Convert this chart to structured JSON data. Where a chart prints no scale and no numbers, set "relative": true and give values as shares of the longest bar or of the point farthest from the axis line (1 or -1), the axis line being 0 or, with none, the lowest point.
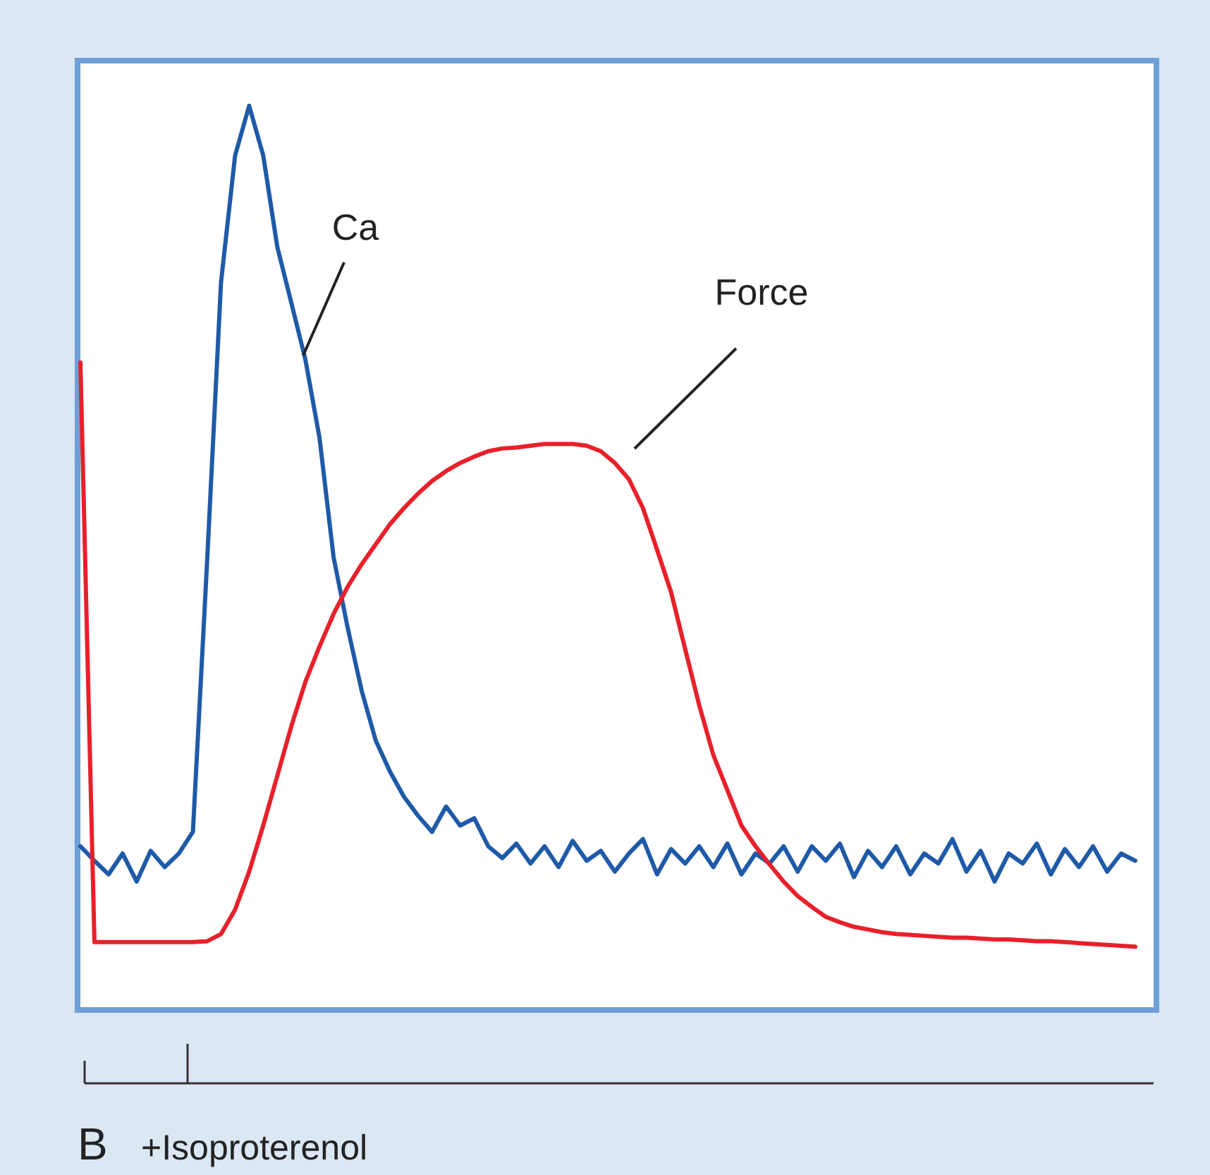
{
  "chart_data": {
    "type": "line",
    "relative": true,
    "categories": [
      null,
      null,
      null,
      null,
      null,
      null,
      null,
      null,
      null,
      null,
      null,
      null,
      null,
      null,
      null,
      null,
      null,
      null,
      null,
      null,
      null,
      null,
      null,
      null,
      null,
      null,
      null,
      null,
      null,
      null,
      null,
      null,
      null,
      null,
      null,
      null,
      null,
      null,
      null,
      null,
      null,
      null,
      null,
      null,
      null,
      null,
      null,
      null,
      null,
      null,
      null,
      null,
      null,
      null,
      null,
      null,
      null,
      null,
      null,
      null,
      null,
      null,
      null,
      null,
      null,
      null,
      null,
      null,
      null,
      null,
      null,
      null,
      null,
      null,
      null,
      null
    ],
    "series": [
      {
        "name": "Ca",
        "color": "#1f5aa8",
        "values": [
          0.181,
          0.165,
          0.15,
          0.173,
          0.142,
          0.176,
          0.158,
          0.173,
          0.197,
          0.493,
          0.805,
          0.945,
          1,
          0.945,
          0.844,
          0.782,
          0.719,
          0.633,
          0.501,
          0.423,
          0.353,
          0.298,
          0.264,
          0.236,
          0.215,
          0.197,
          0.225,
          0.204,
          0.212,
          0.181,
          0.168,
          0.184,
          0.162,
          0.181,
          0.158,
          0.187,
          0.165,
          0.176,
          0.153,
          0.173,
          0.189,
          0.15,
          0.178,
          0.162,
          0.181,
          0.158,
          0.184,
          0.15,
          0.173,
          0.162,
          0.181,
          0.153,
          0.181,
          0.165,
          0.184,
          0.147,
          0.176,
          0.158,
          0.181,
          0.15,
          0.173,
          0.162,
          0.189,
          0.153,
          0.176,
          0.142,
          0.173,
          0.162,
          0.184,
          0.15,
          0.178,
          0.158,
          0.181,
          0.153,
          0.173,
          0.165
        ]
      },
      {
        "name": "Force",
        "color": "#e8202a",
        "values": [
          0.716,
          0.075,
          0.075,
          0.075,
          0.075,
          0.075,
          0.075,
          0.075,
          0.075,
          0.076,
          0.084,
          0.111,
          0.153,
          0.204,
          0.259,
          0.314,
          0.363,
          0.402,
          0.438,
          0.468,
          0.493,
          0.515,
          0.537,
          0.555,
          0.571,
          0.585,
          0.596,
          0.605,
          0.612,
          0.618,
          0.621,
          0.622,
          0.624,
          0.626,
          0.626,
          0.626,
          0.624,
          0.618,
          0.605,
          0.587,
          0.555,
          0.509,
          0.462,
          0.399,
          0.337,
          0.282,
          0.243,
          0.204,
          0.181,
          0.161,
          0.142,
          0.126,
          0.114,
          0.103,
          0.097,
          0.092,
          0.089,
          0.086,
          0.084,
          0.083,
          0.082,
          0.081,
          0.08,
          0.08,
          0.079,
          0.078,
          0.078,
          0.077,
          0.076,
          0.076,
          0.075,
          0.074,
          0.073,
          0.072,
          0.071,
          0.07
        ]
      }
    ],
    "annotations": [
      "B",
      "+Isoproterenol"
    ]
  }
}
